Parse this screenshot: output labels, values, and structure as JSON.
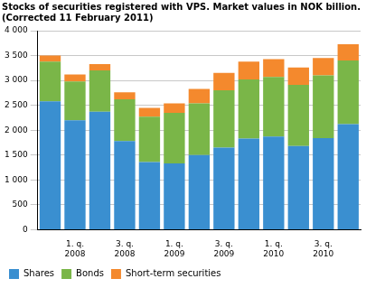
{
  "chart_data": {
    "type": "bar",
    "title": [
      "Stocks of securities registered with VPS. Market values in NOK billion.",
      "(Corrected 11 February 2011)"
    ],
    "categories": [
      null,
      "1. q. 2008",
      null,
      "3. q. 2008",
      null,
      "1. q. 2009",
      null,
      "3. q. 2009",
      null,
      "1. q. 2010",
      null,
      "3. q. 2010",
      null
    ],
    "series": [
      {
        "name": "Shares",
        "color": "#3a8fd0",
        "values": [
          2580,
          2200,
          2370,
          1780,
          1360,
          1330,
          1500,
          1650,
          1830,
          1870,
          1680,
          1840,
          2120
        ]
      },
      {
        "name": "Bonds",
        "color": "#7ab648",
        "values": [
          800,
          780,
          830,
          840,
          910,
          1020,
          1040,
          1150,
          1190,
          1200,
          1230,
          1260,
          1280
        ]
      },
      {
        "name": "Short-term securities",
        "color": "#f4892d",
        "values": [
          120,
          140,
          130,
          140,
          180,
          190,
          290,
          350,
          360,
          360,
          350,
          350,
          330
        ]
      }
    ],
    "stacked": true,
    "ylim": [
      0,
      4000
    ],
    "yticks": [
      0,
      500,
      {
        "value": 1000,
        "label": "1 000"
      },
      {
        "value": 1500,
        "label": "1 500"
      },
      {
        "value": 2000,
        "label": "2 000"
      },
      {
        "value": 2500,
        "label": "2 500"
      },
      {
        "value": 3000,
        "label": "3 000"
      },
      {
        "value": 3500,
        "label": "3 500"
      },
      {
        "value": 4000,
        "label": "4 000"
      }
    ],
    "grid": true,
    "legend": "bottom"
  }
}
